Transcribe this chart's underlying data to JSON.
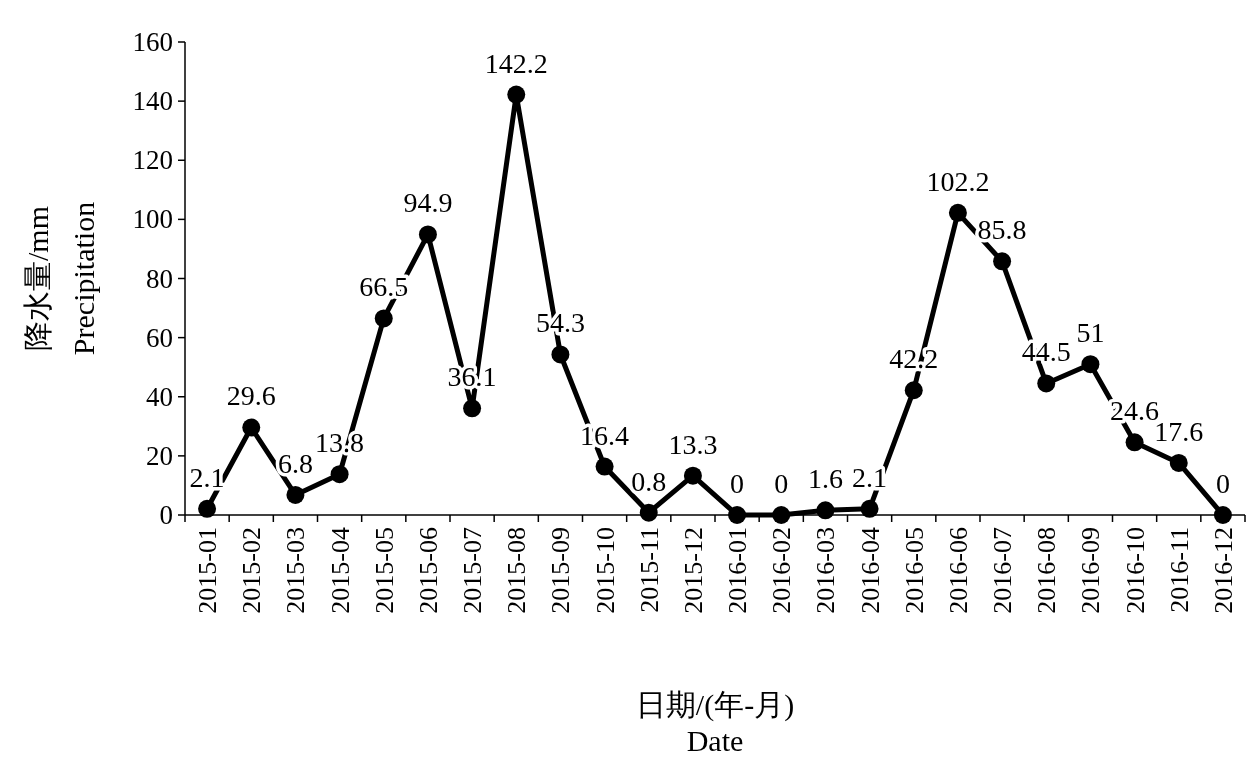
{
  "chart_data": {
    "type": "line",
    "xlabel": "日期/(年-月)\nDate",
    "ylabel": "降水量/mm\nPrecipitation",
    "categories": [
      "2015-01",
      "2015-02",
      "2015-03",
      "2015-04",
      "2015-05",
      "2015-06",
      "2015-07",
      "2015-08",
      "2015-09",
      "2015-10",
      "2015-11",
      "2015-12",
      "2016-01",
      "2016-02",
      "2016-03",
      "2016-04",
      "2016-05",
      "2016-06",
      "2016-07",
      "2016-08",
      "2016-09",
      "2016-10",
      "2016-11",
      "2016-12"
    ],
    "values": [
      2.1,
      29.6,
      6.8,
      13.8,
      66.5,
      94.9,
      36.1,
      142.2,
      54.3,
      16.4,
      0.8,
      13.3,
      0,
      0,
      1.6,
      2.1,
      42.2,
      102.2,
      85.8,
      44.5,
      51,
      24.6,
      17.6,
      0
    ],
    "color": "#000000",
    "marker": "circle",
    "line_style": "solid",
    "data_labels": true,
    "ylim": [
      0,
      160
    ],
    "yticks": [
      0,
      20,
      40,
      60,
      80,
      100,
      120,
      140,
      160
    ]
  }
}
